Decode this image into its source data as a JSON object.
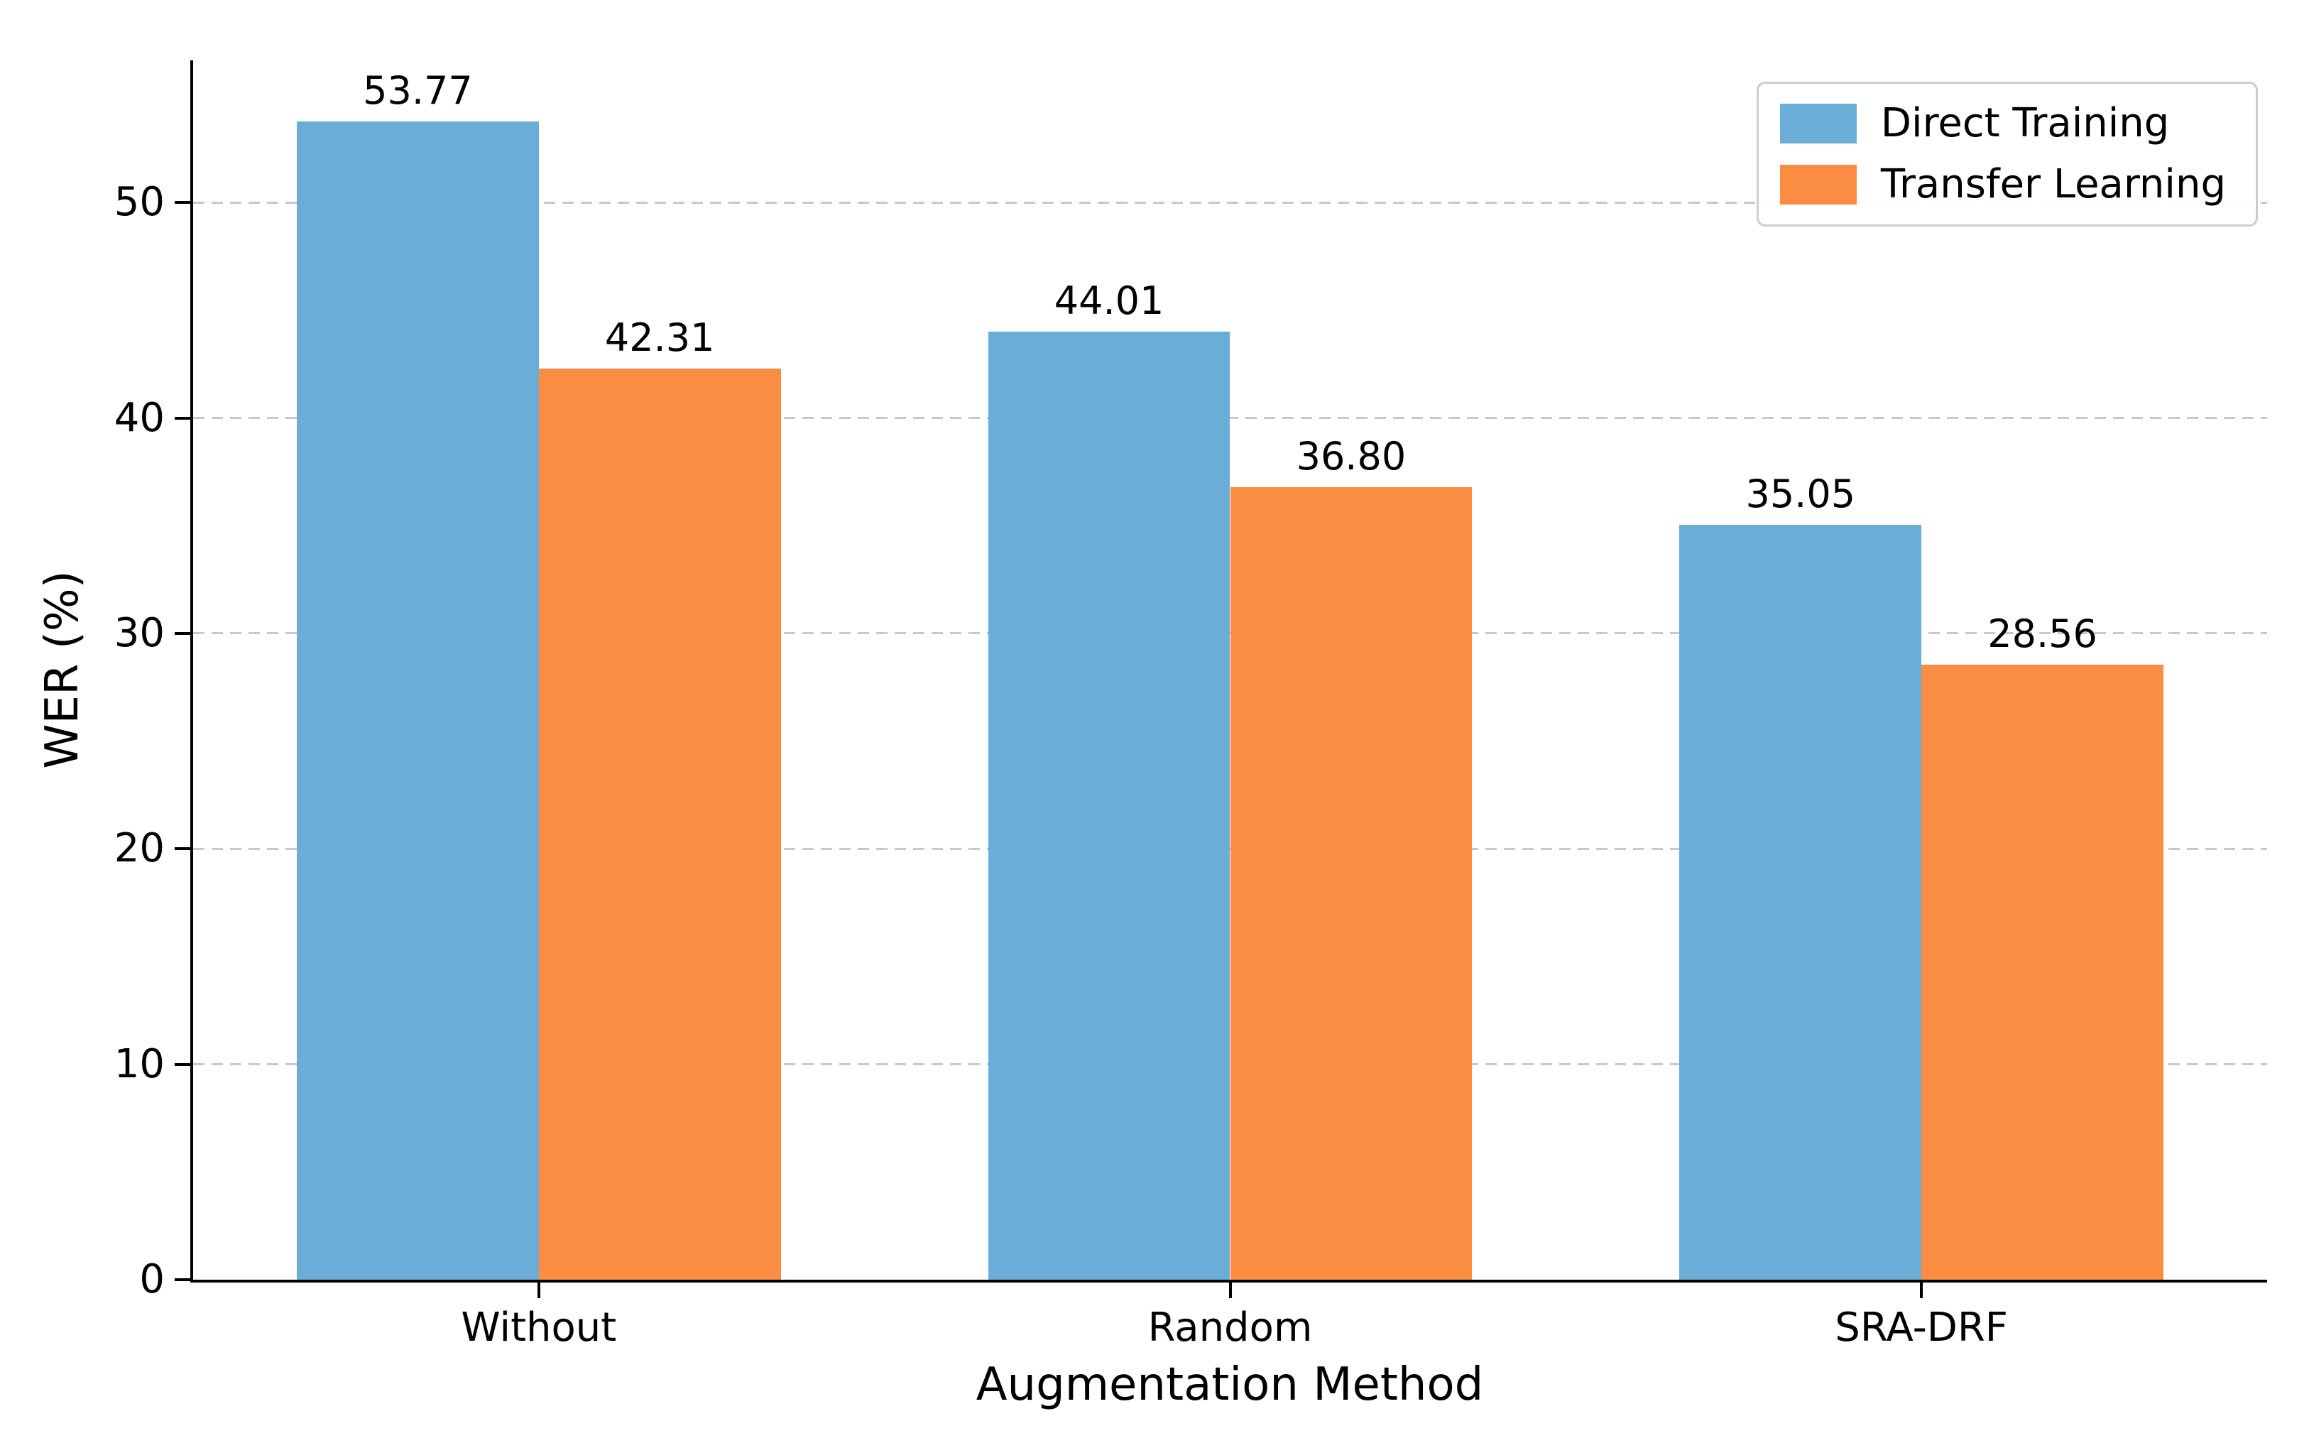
{
  "chart_data": {
    "type": "bar",
    "title": "",
    "xlabel": "Augmentation Method",
    "ylabel": "WER (%)",
    "categories": [
      "Without",
      "Random",
      "SRA-DRF"
    ],
    "series": [
      {
        "name": "Direct Training",
        "color": "#6aaed8",
        "values": [
          53.77,
          44.01,
          35.05
        ],
        "value_labels": [
          "53.77",
          "44.01",
          "35.05"
        ]
      },
      {
        "name": "Transfer Learning",
        "color": "#fb8d42",
        "values": [
          42.31,
          36.8,
          28.56
        ],
        "value_labels": [
          "42.31",
          "36.80",
          "28.56"
        ]
      }
    ],
    "ylim": [
      0,
      56.6
    ],
    "yticks": [
      0,
      10,
      20,
      30,
      40,
      50
    ],
    "grid": {
      "axis": "y",
      "style": "dashed",
      "color": "#c8c8c8"
    },
    "legend": {
      "position": "upper right",
      "entries": [
        "Direct Training",
        "Transfer Learning"
      ]
    },
    "bar_width_fraction": 0.35
  }
}
